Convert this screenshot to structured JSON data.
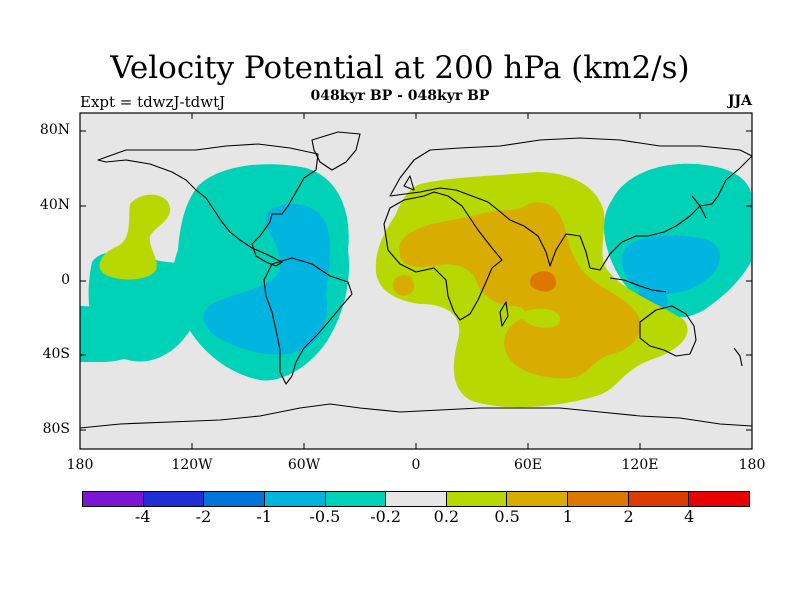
{
  "title": "Velocity Potential at 200 hPa (km2/s)",
  "subtitle": "048kyr BP - 048kyr BP",
  "experiment": "Expt = tdwzJ-tdwtJ",
  "season": "JJA",
  "lat_labels": [
    "80N",
    "40N",
    "0",
    "40S",
    "80S"
  ],
  "lon_labels": [
    "180",
    "120W",
    "60W",
    "0",
    "60E",
    "120E",
    "180"
  ],
  "colorbar": {
    "colors": [
      "#7c16d6",
      "#1f2fd4",
      "#0075d6",
      "#00b4e0",
      "#00d2b8",
      "#e6e6e6",
      "#b7d800",
      "#d8ac00",
      "#dc7800",
      "#dc3c00",
      "#e80000"
    ],
    "labels": [
      "-4",
      "-2",
      "-1",
      "-0.5",
      "-0.2",
      "0.2",
      "0.5",
      "1",
      "2",
      "4"
    ]
  },
  "chart_data": {
    "type": "heatmap",
    "projection": "cylindrical equidistant",
    "lon_range": [
      -180,
      180
    ],
    "lat_range": [
      -90,
      90
    ],
    "contour_levels": [
      -4,
      -2,
      -1,
      -0.5,
      -0.2,
      0.2,
      0.5,
      1,
      2,
      4
    ],
    "features": [
      {
        "region": "Indian Ocean / Africa / Arabia",
        "range": [
          0.5,
          1
        ]
      },
      {
        "region": "Central Indian Ocean near equator",
        "range": [
          1,
          2
        ]
      },
      {
        "region": "Southern Indian Ocean to Australia",
        "range": [
          0.2,
          0.5
        ]
      },
      {
        "region": "Western tropical Pacific / Maritime Continent",
        "range": [
          -0.5,
          -0.2
        ]
      },
      {
        "region": "Eastern North Pacific / North Atlantic / South America",
        "range": [
          -0.5,
          -0.2
        ]
      },
      {
        "region": "Central America / northern South America",
        "range": [
          -1,
          -0.5
        ]
      },
      {
        "region": "Central tropical Pacific",
        "range": [
          0.2,
          0.5
        ]
      }
    ]
  }
}
